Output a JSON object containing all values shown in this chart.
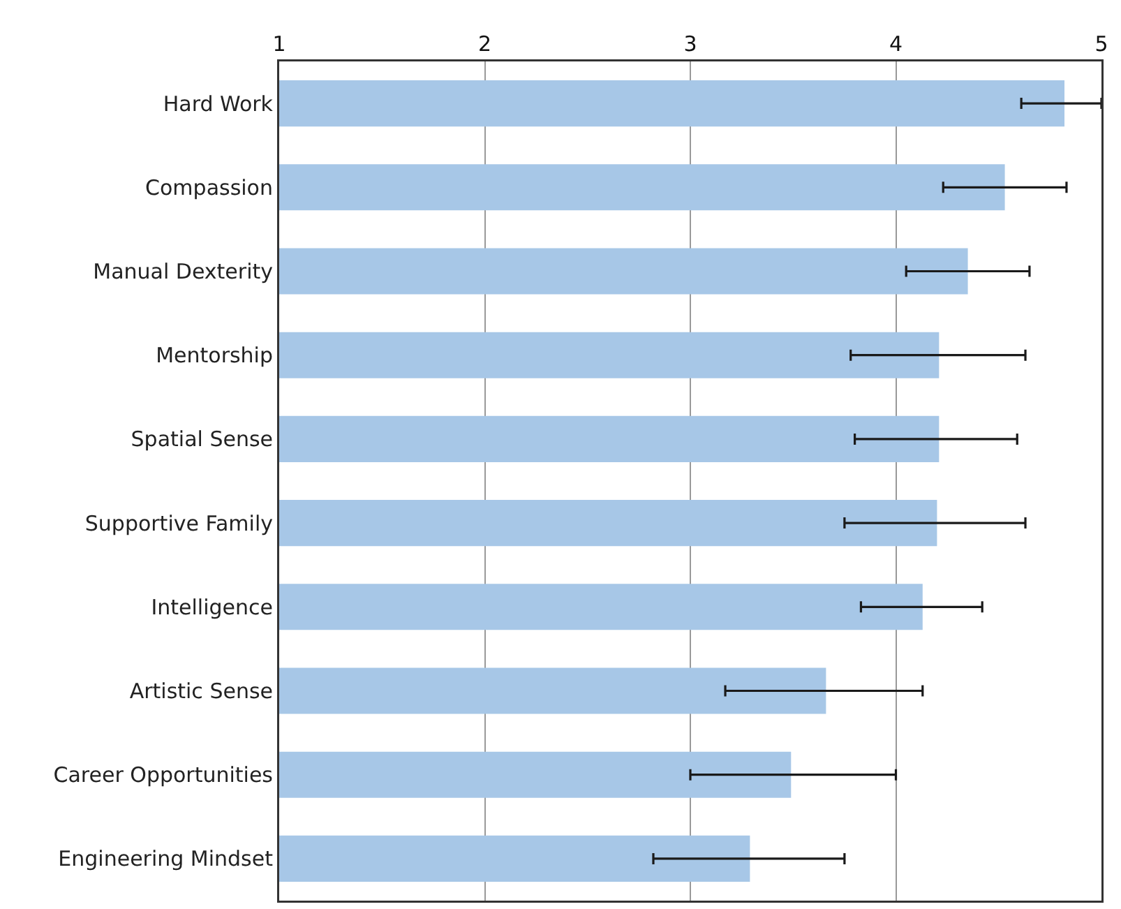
{
  "chart_data": {
    "type": "bar",
    "orientation": "horizontal",
    "categories": [
      "Hard Work",
      "Compassion",
      "Manual Dexterity",
      "Mentorship",
      "Spatial Sense",
      "Supportive Family",
      "Intelligence",
      "Artistic Sense",
      "Career Opportunities",
      "Engineering Mindset"
    ],
    "values": [
      4.82,
      4.53,
      4.35,
      4.21,
      4.21,
      4.2,
      4.13,
      3.66,
      3.49,
      3.29
    ],
    "errors": [
      [
        4.61,
        5
      ],
      [
        4.23,
        4.83
      ],
      [
        4.05,
        4.65
      ],
      [
        3.78,
        4.63
      ],
      [
        3.8,
        4.59
      ],
      [
        3.75,
        4.63
      ],
      [
        3.83,
        4.42
      ],
      [
        3.17,
        4.13
      ],
      [
        3.0,
        4.0
      ],
      [
        2.82,
        3.75
      ]
    ],
    "color": "#a7c7e7",
    "xlim": [
      1,
      5
    ],
    "xticks": [
      1,
      2,
      3,
      4,
      5
    ],
    "grid": "x"
  }
}
